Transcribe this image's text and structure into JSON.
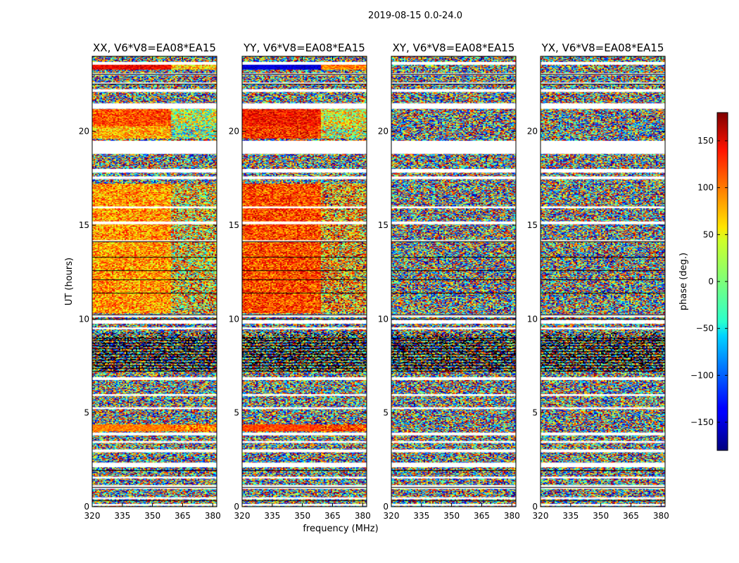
{
  "figure": {
    "suptitle": "2019-08-15 0.0-24.0"
  },
  "chart_data": {
    "type": "heatmap",
    "xlabel": "frequency (MHz)",
    "ylabel": "UT (hours)",
    "xlim": [
      320,
      382
    ],
    "ylim": [
      0,
      24
    ],
    "xticks": [
      320,
      335,
      350,
      365,
      380
    ],
    "yticks": [
      0,
      5,
      10,
      15,
      20
    ],
    "split_freq_mhz": 359,
    "colorbar": {
      "label": "phase (deg.)",
      "range": [
        -180,
        180
      ],
      "ticks": [
        150,
        100,
        50,
        0,
        -50,
        -100,
        -150
      ],
      "tick_labels": [
        "150",
        "100",
        "50",
        "0",
        "−50",
        "−100",
        "−150"
      ],
      "colormap": "jet"
    },
    "panels": [
      {
        "title": "XX, V6*V8=EA08*EA15",
        "bands": [
          {
            "ut": [
              23.3,
              23.6
            ],
            "lo_phase": 140,
            "hi_phase": 60,
            "noise": 30
          },
          {
            "ut": [
              20.3,
              21.2
            ],
            "lo_phase": 110,
            "hi_phase": 20,
            "noise": 45
          },
          {
            "ut": [
              19.6,
              20.3
            ],
            "lo_phase": 70,
            "hi_phase": 10,
            "noise": 55
          },
          {
            "ut": [
              10.3,
              17.2
            ],
            "lo_phase": 80,
            "hi_phase": 60,
            "noise": 60
          },
          {
            "ut": [
              4.0,
              4.4
            ],
            "lo_phase": 90,
            "hi_phase": 90,
            "noise": 25
          }
        ]
      },
      {
        "title": "YY, V6*V8=EA08*EA15",
        "bands": [
          {
            "ut": [
              23.3,
              23.6
            ],
            "lo_phase": -150,
            "hi_phase": 90,
            "noise": 20
          },
          {
            "ut": [
              20.3,
              21.2
            ],
            "lo_phase": 130,
            "hi_phase": 40,
            "noise": 40
          },
          {
            "ut": [
              19.6,
              20.3
            ],
            "lo_phase": 120,
            "hi_phase": 30,
            "noise": 50
          },
          {
            "ut": [
              10.3,
              17.2
            ],
            "lo_phase": 110,
            "hi_phase": 80,
            "noise": 55
          },
          {
            "ut": [
              4.0,
              4.4
            ],
            "lo_phase": 110,
            "hi_phase": 110,
            "noise": 25
          }
        ]
      },
      {
        "title": "XY, V6*V8=EA08*EA15",
        "bands": []
      },
      {
        "title": "YX, V6*V8=EA08*EA15",
        "bands": []
      }
    ],
    "gaps_ut": [
      [
        23.55,
        23.7
      ],
      [
        23.0,
        23.1
      ],
      [
        22.5,
        22.6
      ],
      [
        22.1,
        22.25
      ],
      [
        21.2,
        21.5
      ],
      [
        19.5,
        18.8
      ],
      [
        18.0,
        17.8
      ],
      [
        17.6,
        17.45
      ],
      [
        16.0,
        15.9
      ],
      [
        15.2,
        15.05
      ],
      [
        14.2,
        14.1
      ],
      [
        10.25,
        10.1
      ],
      [
        9.95,
        9.75
      ],
      [
        9.55,
        9.45
      ],
      [
        6.9,
        6.75
      ],
      [
        6.0,
        5.9
      ],
      [
        5.3,
        5.2
      ],
      [
        3.95,
        3.8
      ],
      [
        3.5,
        3.4
      ],
      [
        3.05,
        2.9
      ],
      [
        2.35,
        2.1
      ],
      [
        1.6,
        1.5
      ],
      [
        1.15,
        0.95
      ],
      [
        0.5,
        0.4
      ],
      [
        0.15,
        0.05
      ]
    ],
    "black_lines_ut": [
      23.05,
      22.55,
      14.15,
      13.3,
      12.6,
      12.1,
      11.4,
      10.25,
      10.0,
      9.0,
      8.9,
      8.75,
      8.6,
      8.45,
      8.3,
      8.15,
      8.0,
      7.85,
      7.7,
      7.55,
      7.4,
      7.25,
      1.95,
      1.05,
      0.35
    ],
    "noise_region_ut": [
      7.2,
      9.3
    ]
  }
}
